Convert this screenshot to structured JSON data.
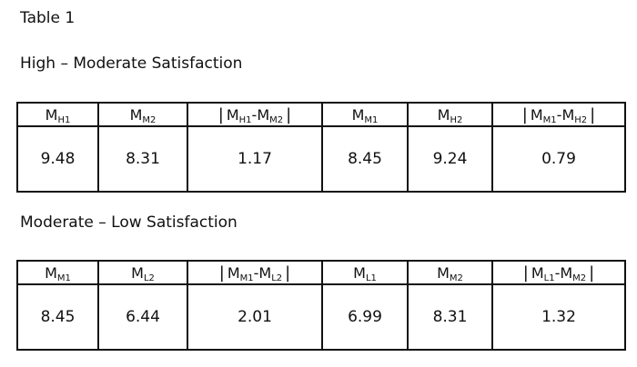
{
  "title": "Table 1",
  "sections": [
    {
      "subtitle": "High – Moderate Satisfaction",
      "headers": [
        {
          "terms": [
            {
              "base": "M",
              "sub": "H1"
            }
          ]
        },
        {
          "terms": [
            {
              "base": "M",
              "sub": "M2"
            }
          ]
        },
        {
          "open": "|",
          "op": "-",
          "close": "|",
          "terms": [
            {
              "base": "M",
              "sub": "H1"
            },
            {
              "base": "M",
              "sub": "M2"
            }
          ]
        },
        {
          "terms": [
            {
              "base": "M",
              "sub": "M1"
            }
          ]
        },
        {
          "terms": [
            {
              "base": "M",
              "sub": "H2"
            }
          ]
        },
        {
          "open": "|",
          "op": "-",
          "close": "|",
          "terms": [
            {
              "base": "M",
              "sub": "M1"
            },
            {
              "base": "M",
              "sub": "H2"
            }
          ]
        }
      ],
      "values": [
        9.48,
        8.31,
        1.17,
        8.45,
        9.24,
        0.79
      ]
    },
    {
      "subtitle": "Moderate – Low Satisfaction",
      "headers": [
        {
          "terms": [
            {
              "base": "M",
              "sub": "M1"
            }
          ]
        },
        {
          "terms": [
            {
              "base": "M",
              "sub": "L2"
            }
          ]
        },
        {
          "open": "|",
          "op": "-",
          "close": "|",
          "terms": [
            {
              "base": "M",
              "sub": "M1"
            },
            {
              "base": "M",
              "sub": "L2"
            }
          ]
        },
        {
          "terms": [
            {
              "base": "M",
              "sub": "L1"
            }
          ]
        },
        {
          "terms": [
            {
              "base": "M",
              "sub": "M2"
            }
          ]
        },
        {
          "open": "|",
          "op": "-",
          "close": "|",
          "terms": [
            {
              "base": "M",
              "sub": "L1"
            },
            {
              "base": "M",
              "sub": "M2"
            }
          ]
        }
      ],
      "values": [
        8.45,
        6.44,
        2.01,
        6.99,
        8.31,
        1.32
      ]
    }
  ]
}
